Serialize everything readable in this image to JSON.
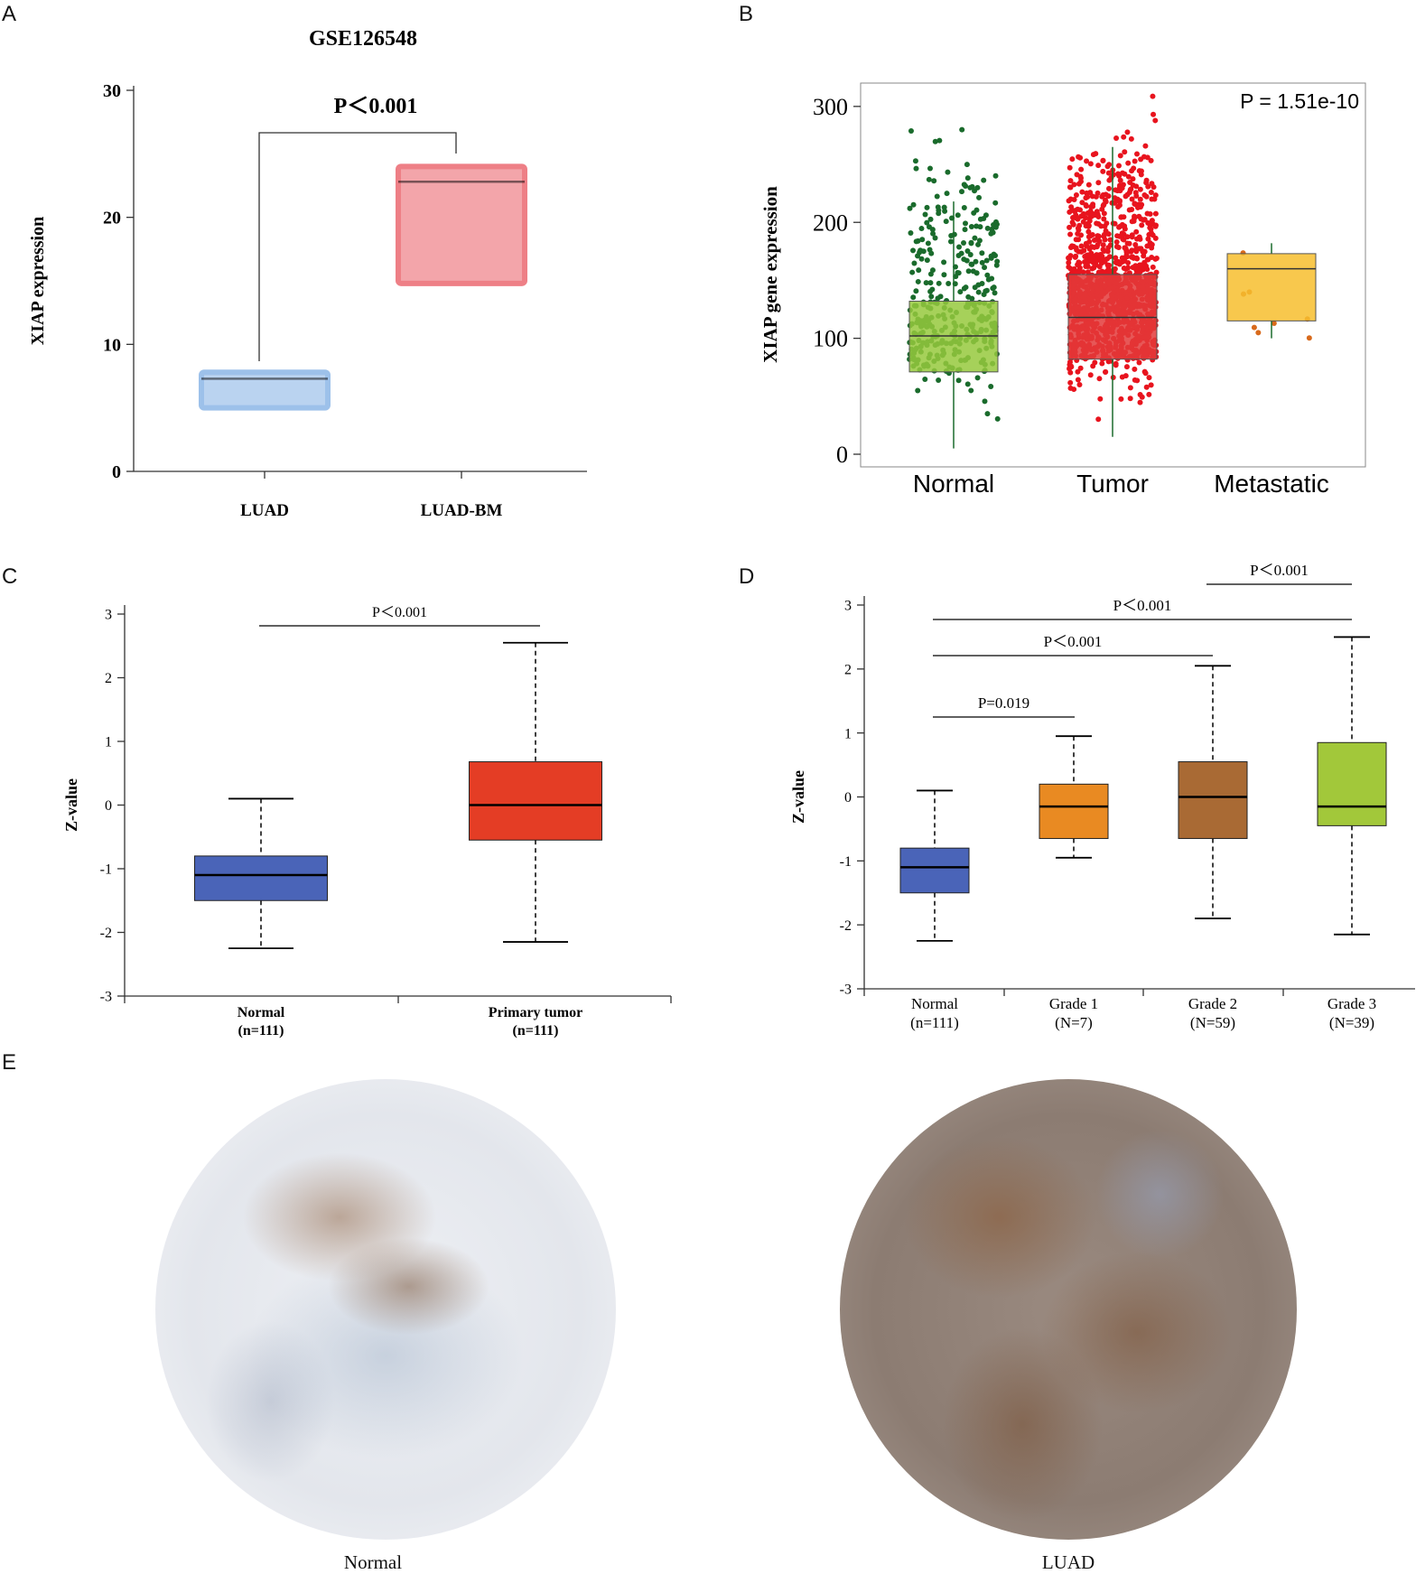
{
  "panel_letters": [
    "A",
    "B",
    "C",
    "D",
    "E"
  ],
  "chart_data": [
    {
      "panel": "A",
      "type": "box",
      "title": "GSE126548",
      "ylabel": "XIAP expression",
      "xlabel": "",
      "ylim": [
        0,
        30
      ],
      "yticks": [
        0,
        10,
        20,
        30
      ],
      "categories": [
        "LUAD",
        "LUAD-BM"
      ],
      "boxes": [
        {
          "name": "LUAD",
          "q1": 5,
          "median": 7.3,
          "q3": 7.8,
          "color": "#9dc1ea"
        },
        {
          "name": "LUAD-BM",
          "q1": 14.8,
          "median": 22.8,
          "q3": 24,
          "color": "#ee7f86"
        }
      ],
      "annotations": [
        {
          "text": "P＜0.001",
          "from": "LUAD",
          "to": "LUAD-BM"
        }
      ]
    },
    {
      "panel": "B",
      "type": "box",
      "title": "",
      "ylabel": "XIAP gene expression",
      "xlabel": "",
      "ylim": [
        0,
        310
      ],
      "yticks": [
        0,
        100,
        200,
        300
      ],
      "categories": [
        "Normal",
        "Tumor",
        "Metastatic"
      ],
      "boxes": [
        {
          "name": "Normal",
          "whisker_low": 5,
          "q1": 71,
          "median": 102,
          "q3": 132,
          "whisker_high": 218,
          "color": "#96c93d",
          "point_color": "#1a6b2c"
        },
        {
          "name": "Tumor",
          "whisker_low": 15,
          "q1": 82,
          "median": 118,
          "q3": 155,
          "whisker_high": 265,
          "color": "#e33a3a",
          "point_color": "#e8141e"
        },
        {
          "name": "Metastatic",
          "whisker_low": 100,
          "q1": 115,
          "median": 160,
          "q3": 173,
          "whisker_high": 182,
          "color": "#f7be2e",
          "point_color": "#d86a1c"
        }
      ],
      "annotations": [
        {
          "text": "P = 1.51e-10",
          "position": "top-right"
        }
      ]
    },
    {
      "panel": "C",
      "type": "box",
      "title": "",
      "ylabel": "Z-value",
      "xlabel": "",
      "ylim": [
        -3,
        3
      ],
      "yticks": [
        -3,
        -2,
        -1,
        0,
        1,
        2,
        3
      ],
      "categories": [
        "Normal",
        "Primary tumor"
      ],
      "category_counts": [
        "(n=111)",
        "(n=111)"
      ],
      "boxes": [
        {
          "name": "Normal",
          "whisker_low": -2.25,
          "q1": -1.5,
          "median": -1.1,
          "q3": -0.8,
          "whisker_high": 0.1,
          "color": "#4a64b8"
        },
        {
          "name": "Primary tumor",
          "whisker_low": -2.15,
          "q1": -0.55,
          "median": 0.0,
          "q3": 0.68,
          "whisker_high": 2.55,
          "color": "#e43d25"
        }
      ],
      "annotations": [
        {
          "text": "P＜0.001",
          "from": "Normal",
          "to": "Primary tumor"
        }
      ]
    },
    {
      "panel": "D",
      "type": "box",
      "title": "",
      "ylabel": "Z-value",
      "xlabel": "",
      "ylim": [
        -3,
        3
      ],
      "yticks": [
        -3,
        -2,
        -1,
        0,
        1,
        2,
        3
      ],
      "categories": [
        "Normal",
        "Grade 1",
        "Grade 2",
        "Grade 3"
      ],
      "category_counts": [
        "(n=111)",
        "(N=7)",
        "(N=59)",
        "(N=39)"
      ],
      "boxes": [
        {
          "name": "Normal",
          "whisker_low": -2.25,
          "q1": -1.5,
          "median": -1.1,
          "q3": -0.8,
          "whisker_high": 0.1,
          "color": "#4a64b8"
        },
        {
          "name": "Grade 1",
          "whisker_low": -0.95,
          "q1": -0.65,
          "median": -0.15,
          "q3": 0.2,
          "whisker_high": 0.95,
          "color": "#e98a22"
        },
        {
          "name": "Grade 2",
          "whisker_low": -1.9,
          "q1": -0.65,
          "median": 0.0,
          "q3": 0.55,
          "whisker_high": 2.05,
          "color": "#a96a34"
        },
        {
          "name": "Grade 3",
          "whisker_low": -2.15,
          "q1": -0.45,
          "median": -0.15,
          "q3": 0.85,
          "whisker_high": 2.5,
          "color": "#a2c83a"
        }
      ],
      "annotations": [
        {
          "text": "P=0.019",
          "from": "Normal",
          "to": "Grade 1"
        },
        {
          "text": "P＜0.001",
          "from": "Normal",
          "to": "Grade 2"
        },
        {
          "text": "P＜0.001",
          "from": "Normal",
          "to": "Grade 3"
        },
        {
          "text": "P＜0.001",
          "from": "Grade 2",
          "to": "Grade 3"
        }
      ]
    }
  ],
  "histology": {
    "left_caption": "Normal",
    "right_caption": "LUAD"
  }
}
